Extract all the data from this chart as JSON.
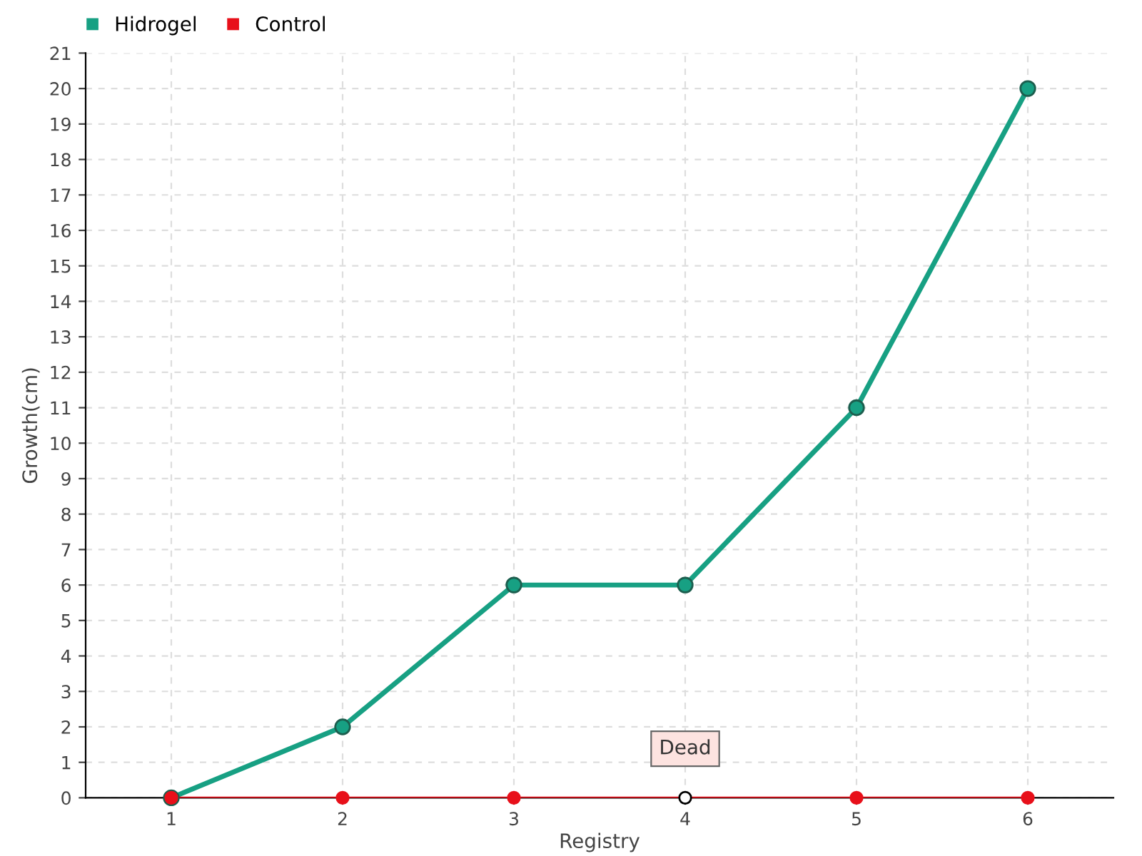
{
  "chart_data": {
    "type": "line",
    "xlabel": "Registry",
    "ylabel": "Growth(cm)",
    "categories": [
      "1",
      "2",
      "3",
      "4",
      "5",
      "6"
    ],
    "series": [
      {
        "name": "Hidrogel",
        "color": "#17a083",
        "values": [
          0,
          2,
          6,
          6,
          11,
          20
        ]
      },
      {
        "name": "Control",
        "color": "#e8101a",
        "values": [
          0,
          0,
          0,
          0,
          0,
          0
        ],
        "colors": [
          "#e8101a",
          "#e8101a",
          "#e8101a",
          "#ffffff",
          "#e8101a",
          "#e8101a"
        ]
      }
    ],
    "annotations": [
      {
        "text": "Dead",
        "x": "4",
        "y": 0
      }
    ],
    "ylim": [
      0,
      21
    ],
    "yticks": [
      0,
      1,
      2,
      3,
      4,
      5,
      6,
      7,
      8,
      9,
      10,
      11,
      12,
      13,
      14,
      15,
      16,
      17,
      18,
      19,
      20,
      21
    ],
    "grid": true,
    "legend": "top left",
    "marker": "circle",
    "line_style": "solid"
  }
}
